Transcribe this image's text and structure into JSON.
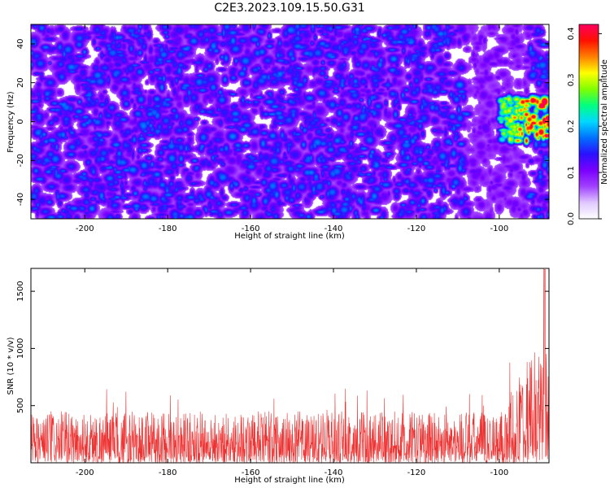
{
  "title": "C2E3.2023.109.15.50.G31",
  "colors": {
    "snr_line": "#ee3333",
    "cmap": [
      "#ffffff",
      "#e0c8ff",
      "#a040ff",
      "#7a00ff",
      "#2a10ff",
      "#0070ff",
      "#00d8ff",
      "#00ff80",
      "#80ff00",
      "#ffff00",
      "#ff8000",
      "#ff1000",
      "#ff0060"
    ]
  },
  "chart_data": [
    {
      "type": "heatmap",
      "xlabel": "Height of straight line (km)",
      "ylabel": "Frequency (Hz)",
      "xlim": [
        -213,
        -88
      ],
      "ylim": [
        -50,
        50
      ],
      "xticks": [
        -200,
        -180,
        -160,
        -140,
        -120,
        -100
      ],
      "yticks": [
        -40,
        -20,
        0,
        20,
        40
      ],
      "colorbar": {
        "label": "Normalized spectral amplitude",
        "range": [
          0,
          0.42
        ],
        "ticks": [
          "0.0",
          "0.1",
          "0.2",
          "0.3",
          "0.4"
        ]
      },
      "description_values": {
        "background_amplitude": [
          0.02,
          0.09
        ],
        "peak_region": {
          "x": [
            -100,
            -88
          ],
          "y": [
            -10,
            12
          ],
          "max_amplitude": 0.4
        }
      }
    },
    {
      "type": "line",
      "xlabel": "Height of straight line (km)",
      "ylabel": "SNR (10 * v/v)",
      "xlim": [
        -213,
        -88
      ],
      "ylim": [
        0,
        1700
      ],
      "xticks": [
        -200,
        -180,
        -160,
        -140,
        -120,
        -100
      ],
      "yticks": [
        500,
        1000,
        1500
      ],
      "series": [
        {
          "noise_floor": [
            0,
            450
          ],
          "typical_peak": 650,
          "end_rise_start": -100,
          "end_peak": {
            "x": -89,
            "y": 1690
          }
        }
      ]
    }
  ]
}
